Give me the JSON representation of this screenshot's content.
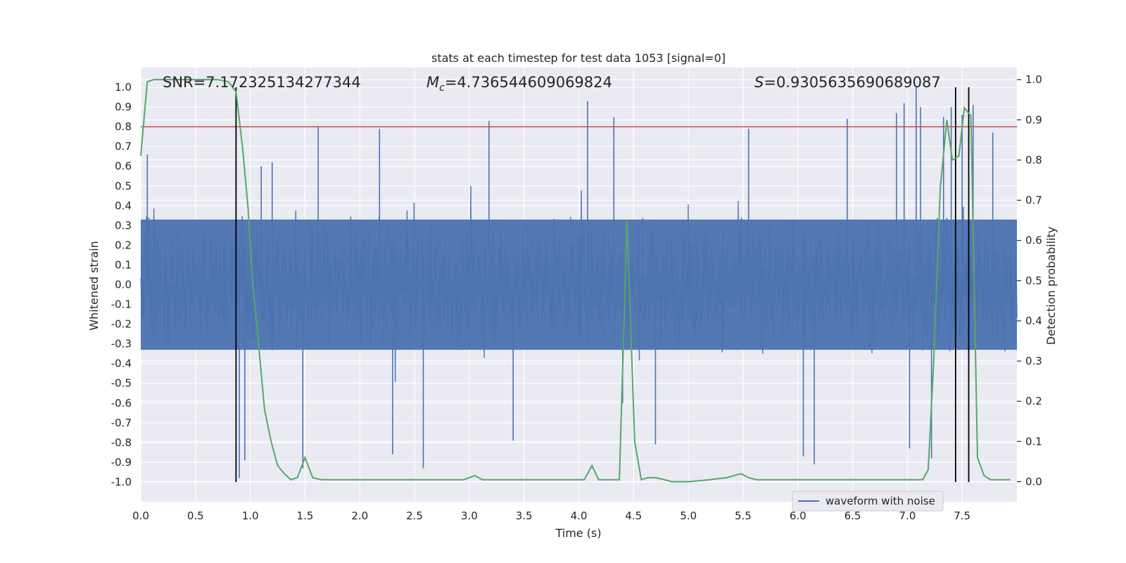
{
  "chart_data": {
    "type": "line",
    "title": "stats at each timestep for test data 1053 [signal=0]",
    "xlabel": "Time (s)",
    "ylabel_left": "Whitened strain",
    "ylabel_right": "Detection probability",
    "xlim": [
      0.0,
      8.0
    ],
    "ylim_left": [
      -1.1,
      1.1
    ],
    "ylim_right": [
      -0.05,
      1.03
    ],
    "x_ticks": [
      "0.0",
      "0.5",
      "1.0",
      "1.5",
      "2.0",
      "2.5",
      "3.0",
      "3.5",
      "4.0",
      "4.5",
      "5.0",
      "5.5",
      "6.0",
      "6.5",
      "7.0",
      "7.5"
    ],
    "x_tick_values": [
      0,
      0.5,
      1,
      1.5,
      2,
      2.5,
      3,
      3.5,
      4,
      4.5,
      5,
      5.5,
      6,
      6.5,
      7,
      7.5
    ],
    "y_left_ticks": [
      "1.0",
      "0.9",
      "0.8",
      "0.7",
      "0.6",
      "0.5",
      "0.4",
      "0.3",
      "0.2",
      "0.1",
      "0.0",
      "-0.1",
      "-0.2",
      "-0.3",
      "-0.4",
      "-0.5",
      "-0.6",
      "-0.7",
      "-0.8",
      "-0.9",
      "-1.0"
    ],
    "y_left_tick_values": [
      1,
      0.9,
      0.8,
      0.7,
      0.6,
      0.5,
      0.4,
      0.3,
      0.2,
      0.1,
      0,
      -0.1,
      -0.2,
      -0.3,
      -0.4,
      -0.5,
      -0.6,
      -0.7,
      -0.8,
      -0.9,
      -1.0
    ],
    "y_right_ticks": [
      "1.0",
      "0.9",
      "0.8",
      "0.7",
      "0.6",
      "0.5",
      "0.4",
      "0.3",
      "0.2",
      "0.1",
      "0.0"
    ],
    "y_right_tick_values": [
      1,
      0.9,
      0.8,
      0.7,
      0.6,
      0.5,
      0.4,
      0.3,
      0.2,
      0.1,
      0
    ],
    "annotations": {
      "snr": "SNR=7.172325134277344",
      "mc_symbol": "M",
      "mc_sub": "c",
      "mc_value": "=4.736544609069824",
      "s_symbol": "S",
      "s_value": "=0.9305635690689087"
    },
    "threshold": 0.8,
    "vertical_lines": [
      0.87,
      7.44,
      7.56
    ],
    "legend": [
      {
        "label": "waveform with noise",
        "color": "#4c72b0"
      }
    ],
    "legend_position": "lower-right",
    "colors": {
      "waveform": "#4c72b0",
      "probability": "#55a868",
      "threshold": "#c44e52",
      "vlines": "#000000",
      "background": "#eaeaf2",
      "grid": "#ffffff"
    },
    "waveform_envelope": {
      "description": "dense whitened-strain noise, typical amplitude about +/-0.35, spikes up to ~0.95",
      "notable_spikes": [
        [
          0.06,
          0.66
        ],
        [
          0.87,
          0.64
        ],
        [
          0.9,
          -0.98
        ],
        [
          0.95,
          -0.89
        ],
        [
          1.1,
          0.6
        ],
        [
          1.2,
          0.62
        ],
        [
          1.48,
          -0.93
        ],
        [
          1.62,
          0.8
        ],
        [
          2.18,
          0.79
        ],
        [
          2.3,
          -0.86
        ],
        [
          2.58,
          -0.93
        ],
        [
          3.18,
          0.83
        ],
        [
          3.4,
          -0.79
        ],
        [
          4.08,
          0.93
        ],
        [
          4.32,
          0.85
        ],
        [
          4.4,
          -0.6
        ],
        [
          4.7,
          -0.81
        ],
        [
          5.55,
          0.79
        ],
        [
          6.05,
          -0.87
        ],
        [
          6.15,
          -0.91
        ],
        [
          6.45,
          0.84
        ],
        [
          6.9,
          0.87
        ],
        [
          6.97,
          0.92
        ],
        [
          7.02,
          -0.83
        ],
        [
          7.08,
          1.0
        ],
        [
          7.12,
          0.9
        ],
        [
          7.22,
          -0.88
        ],
        [
          7.33,
          0.85
        ],
        [
          7.4,
          0.9
        ],
        [
          7.5,
          0.86
        ],
        [
          7.6,
          0.91
        ],
        [
          7.78,
          0.77
        ]
      ]
    },
    "probability_series": {
      "x": [
        0.0,
        0.06,
        0.12,
        0.2,
        0.3,
        0.5,
        0.7,
        0.8,
        0.87,
        0.93,
        0.98,
        1.02,
        1.07,
        1.13,
        1.19,
        1.25,
        1.31,
        1.37,
        1.43,
        1.5,
        1.57,
        1.65,
        1.75,
        1.9,
        2.1,
        2.3,
        2.5,
        2.7,
        2.85,
        2.95,
        3.05,
        3.12,
        3.2,
        3.4,
        3.6,
        3.8,
        3.95,
        4.05,
        4.12,
        4.18,
        4.25,
        4.3,
        4.37,
        4.44,
        4.51,
        4.57,
        4.63,
        4.7,
        4.78,
        4.85,
        5.0,
        5.2,
        5.35,
        5.48,
        5.55,
        5.62,
        5.75,
        5.9,
        6.0,
        6.2,
        6.4,
        6.6,
        6.75,
        6.85,
        6.95,
        7.05,
        7.14,
        7.19,
        7.24,
        7.3,
        7.36,
        7.41,
        7.47,
        7.52,
        7.58,
        7.64,
        7.7,
        7.76,
        7.82,
        7.88,
        7.94
      ],
      "y": [
        0.81,
        0.995,
        1.0,
        1.0,
        1.0,
        1.0,
        1.0,
        0.995,
        0.97,
        0.83,
        0.68,
        0.5,
        0.36,
        0.18,
        0.1,
        0.04,
        0.02,
        0.005,
        0.01,
        0.06,
        0.01,
        0.005,
        0.005,
        0.005,
        0.005,
        0.005,
        0.005,
        0.005,
        0.005,
        0.005,
        0.015,
        0.005,
        0.005,
        0.005,
        0.005,
        0.005,
        0.005,
        0.005,
        0.04,
        0.005,
        0.005,
        0.005,
        0.005,
        0.65,
        0.1,
        0.005,
        0.01,
        0.01,
        0.005,
        0.0,
        0.0,
        0.005,
        0.01,
        0.02,
        0.01,
        0.005,
        0.005,
        0.005,
        0.005,
        0.005,
        0.005,
        0.005,
        0.005,
        0.005,
        0.005,
        0.005,
        0.005,
        0.03,
        0.3,
        0.73,
        0.9,
        0.8,
        0.81,
        0.93,
        0.91,
        0.06,
        0.015,
        0.005,
        0.005,
        0.005,
        0.005
      ]
    }
  }
}
